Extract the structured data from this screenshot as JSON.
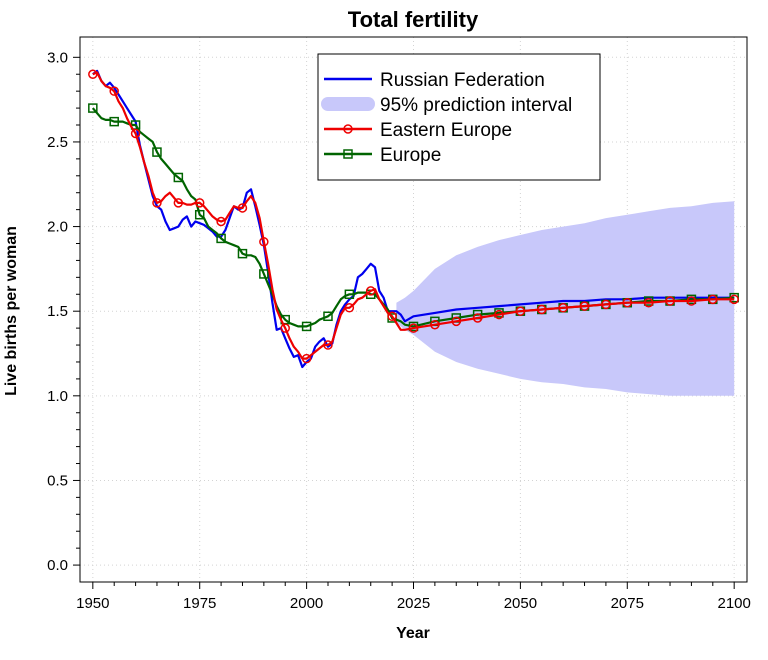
{
  "chart_data": {
    "type": "line",
    "title": "Total fertility",
    "xlabel": "Year",
    "ylabel": "Live births per woman",
    "xlim": [
      1947,
      2103
    ],
    "ylim": [
      -0.1,
      3.12
    ],
    "x_ticks": [
      1950,
      1975,
      2000,
      2025,
      2050,
      2075,
      2100
    ],
    "y_ticks": [
      0.0,
      0.5,
      1.0,
      1.5,
      2.0,
      2.5,
      3.0
    ],
    "x_tick_labels": [
      "1950",
      "1975",
      "2000",
      "2025",
      "2050",
      "2075",
      "2100"
    ],
    "y_tick_labels": [
      "0.0",
      "0.5",
      "1.0",
      "1.5",
      "2.0",
      "2.5",
      "3.0"
    ],
    "grid": true,
    "legend_position": "top-right",
    "legend": [
      {
        "label": "Russian Federation",
        "color": "#0000ee",
        "style": "line"
      },
      {
        "label": "95% prediction interval",
        "color": "#c8c8fa",
        "style": "band"
      },
      {
        "label": "Eastern Europe",
        "color": "#ee0000",
        "style": "line-circle"
      },
      {
        "label": "Europe",
        "color": "#006400",
        "style": "line-square"
      }
    ],
    "series": [
      {
        "name": "Russian Federation",
        "color": "#0000ee",
        "x": [
          1950,
          1951,
          1952,
          1953,
          1954,
          1955,
          1956,
          1957,
          1958,
          1959,
          1960,
          1961,
          1962,
          1963,
          1964,
          1965,
          1966,
          1967,
          1968,
          1969,
          1970,
          1971,
          1972,
          1973,
          1974,
          1975,
          1976,
          1977,
          1978,
          1979,
          1980,
          1981,
          1982,
          1983,
          1984,
          1985,
          1986,
          1987,
          1988,
          1989,
          1990,
          1991,
          1992,
          1993,
          1994,
          1995,
          1996,
          1997,
          1998,
          1999,
          2000,
          2001,
          2002,
          2003,
          2004,
          2005,
          2006,
          2007,
          2008,
          2009,
          2010,
          2011,
          2012,
          2013,
          2014,
          2015,
          2016,
          2017,
          2018,
          2019,
          2020,
          2021,
          2022,
          2023,
          2025,
          2030,
          2035,
          2040,
          2045,
          2050,
          2055,
          2060,
          2065,
          2070,
          2075,
          2080,
          2085,
          2090,
          2095,
          2100
        ],
        "y": [
          2.9,
          2.92,
          2.86,
          2.83,
          2.85,
          2.82,
          2.78,
          2.74,
          2.7,
          2.66,
          2.62,
          2.48,
          2.38,
          2.28,
          2.18,
          2.12,
          2.1,
          2.03,
          1.98,
          1.99,
          2.0,
          2.04,
          2.06,
          2.0,
          2.03,
          2.02,
          2.01,
          1.99,
          1.97,
          1.94,
          1.94,
          1.98,
          2.05,
          2.12,
          2.1,
          2.11,
          2.2,
          2.22,
          2.12,
          2.01,
          1.89,
          1.73,
          1.55,
          1.39,
          1.4,
          1.34,
          1.28,
          1.23,
          1.24,
          1.17,
          1.2,
          1.22,
          1.29,
          1.32,
          1.34,
          1.29,
          1.31,
          1.42,
          1.5,
          1.54,
          1.57,
          1.59,
          1.7,
          1.72,
          1.75,
          1.78,
          1.76,
          1.62,
          1.58,
          1.5,
          1.5,
          1.5,
          1.48,
          1.44,
          1.47,
          1.49,
          1.51,
          1.52,
          1.53,
          1.54,
          1.55,
          1.56,
          1.56,
          1.57,
          1.57,
          1.58,
          1.58,
          1.58,
          1.58,
          1.58
        ]
      },
      {
        "name": "Eastern Europe",
        "color": "#ee0000",
        "marker": "circle",
        "x": [
          1950,
          1951,
          1952,
          1953,
          1954,
          1955,
          1956,
          1957,
          1958,
          1959,
          1960,
          1961,
          1962,
          1963,
          1964,
          1965,
          1966,
          1967,
          1968,
          1969,
          1970,
          1971,
          1972,
          1973,
          1974,
          1975,
          1976,
          1977,
          1978,
          1979,
          1980,
          1981,
          1982,
          1983,
          1984,
          1985,
          1986,
          1987,
          1988,
          1989,
          1990,
          1991,
          1992,
          1993,
          1994,
          1995,
          1996,
          1997,
          1998,
          1999,
          2000,
          2001,
          2002,
          2003,
          2004,
          2005,
          2006,
          2007,
          2008,
          2009,
          2010,
          2011,
          2012,
          2013,
          2014,
          2015,
          2016,
          2017,
          2018,
          2019,
          2020,
          2021,
          2022,
          2023,
          2025,
          2030,
          2035,
          2040,
          2045,
          2050,
          2055,
          2060,
          2065,
          2070,
          2075,
          2080,
          2085,
          2090,
          2095,
          2100
        ],
        "y": [
          2.9,
          2.91,
          2.86,
          2.83,
          2.82,
          2.8,
          2.74,
          2.7,
          2.64,
          2.59,
          2.55,
          2.47,
          2.38,
          2.3,
          2.2,
          2.14,
          2.15,
          2.18,
          2.2,
          2.17,
          2.14,
          2.14,
          2.13,
          2.13,
          2.14,
          2.14,
          2.12,
          2.09,
          2.06,
          2.04,
          2.03,
          2.04,
          2.08,
          2.12,
          2.11,
          2.11,
          2.15,
          2.18,
          2.14,
          2.05,
          1.91,
          1.78,
          1.63,
          1.51,
          1.45,
          1.4,
          1.34,
          1.29,
          1.26,
          1.22,
          1.22,
          1.24,
          1.26,
          1.28,
          1.3,
          1.3,
          1.32,
          1.4,
          1.48,
          1.52,
          1.52,
          1.54,
          1.57,
          1.58,
          1.6,
          1.62,
          1.63,
          1.57,
          1.53,
          1.49,
          1.47,
          1.43,
          1.39,
          1.39,
          1.4,
          1.42,
          1.44,
          1.46,
          1.48,
          1.5,
          1.51,
          1.52,
          1.53,
          1.54,
          1.55,
          1.55,
          1.56,
          1.56,
          1.57,
          1.57
        ]
      },
      {
        "name": "Europe",
        "color": "#006400",
        "marker": "square",
        "x": [
          1950,
          1951,
          1952,
          1953,
          1954,
          1955,
          1956,
          1957,
          1958,
          1959,
          1960,
          1961,
          1962,
          1963,
          1964,
          1965,
          1966,
          1967,
          1968,
          1969,
          1970,
          1971,
          1972,
          1973,
          1974,
          1975,
          1976,
          1977,
          1978,
          1979,
          1980,
          1981,
          1982,
          1983,
          1984,
          1985,
          1986,
          1987,
          1988,
          1989,
          1990,
          1991,
          1992,
          1993,
          1994,
          1995,
          1996,
          1997,
          1998,
          1999,
          2000,
          2001,
          2002,
          2003,
          2004,
          2005,
          2006,
          2007,
          2008,
          2009,
          2010,
          2011,
          2012,
          2013,
          2014,
          2015,
          2016,
          2017,
          2018,
          2019,
          2020,
          2021,
          2022,
          2023,
          2025,
          2030,
          2035,
          2040,
          2045,
          2050,
          2055,
          2060,
          2065,
          2070,
          2075,
          2080,
          2085,
          2090,
          2095,
          2100
        ],
        "y": [
          2.7,
          2.67,
          2.64,
          2.63,
          2.63,
          2.62,
          2.62,
          2.62,
          2.61,
          2.6,
          2.6,
          2.56,
          2.54,
          2.52,
          2.5,
          2.44,
          2.4,
          2.37,
          2.34,
          2.31,
          2.29,
          2.27,
          2.22,
          2.18,
          2.16,
          2.07,
          2.05,
          2.0,
          1.98,
          1.96,
          1.93,
          1.91,
          1.9,
          1.89,
          1.88,
          1.84,
          1.83,
          1.83,
          1.82,
          1.78,
          1.72,
          1.66,
          1.6,
          1.53,
          1.48,
          1.45,
          1.43,
          1.42,
          1.41,
          1.41,
          1.41,
          1.42,
          1.43,
          1.45,
          1.46,
          1.47,
          1.49,
          1.53,
          1.57,
          1.59,
          1.6,
          1.6,
          1.61,
          1.61,
          1.61,
          1.6,
          1.6,
          1.57,
          1.54,
          1.51,
          1.46,
          1.45,
          1.44,
          1.42,
          1.41,
          1.44,
          1.46,
          1.48,
          1.49,
          1.5,
          1.51,
          1.52,
          1.53,
          1.54,
          1.55,
          1.56,
          1.56,
          1.57,
          1.57,
          1.58
        ]
      }
    ],
    "band": {
      "name": "95% prediction interval",
      "color": "#c8c8fa",
      "x": [
        2021,
        2023,
        2025,
        2030,
        2035,
        2040,
        2045,
        2050,
        2055,
        2060,
        2065,
        2070,
        2075,
        2080,
        2085,
        2090,
        2095,
        2100
      ],
      "lower": [
        1.43,
        1.39,
        1.36,
        1.26,
        1.2,
        1.16,
        1.13,
        1.1,
        1.08,
        1.07,
        1.05,
        1.04,
        1.02,
        1.01,
        1.0,
        1.0,
        1.0,
        1.0
      ],
      "upper": [
        1.55,
        1.58,
        1.62,
        1.75,
        1.83,
        1.88,
        1.92,
        1.95,
        1.98,
        2.0,
        2.02,
        2.05,
        2.07,
        2.09,
        2.11,
        2.12,
        2.14,
        2.15
      ]
    },
    "marker_years": [
      1950,
      1955,
      1960,
      1965,
      1970,
      1975,
      1980,
      1985,
      1990,
      1995,
      2000,
      2005,
      2010,
      2015,
      2020,
      2025,
      2030,
      2035,
      2040,
      2045,
      2050,
      2055,
      2060,
      2065,
      2070,
      2075,
      2080,
      2085,
      2090,
      2095,
      2100
    ]
  }
}
